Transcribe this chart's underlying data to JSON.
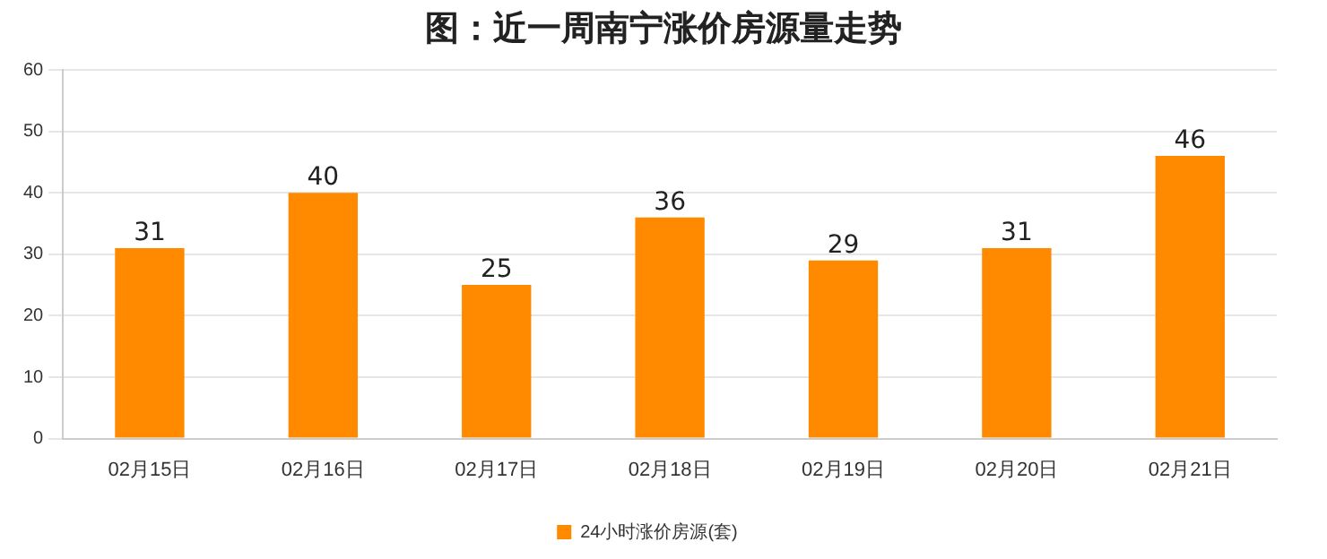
{
  "chart_data": {
    "type": "bar",
    "title": "图：近一周南宁涨价房源量走势",
    "categories": [
      "02月15日",
      "02月16日",
      "02月17日",
      "02月18日",
      "02月19日",
      "02月20日",
      "02月21日"
    ],
    "series": [
      {
        "name": "24小时涨价房源(套)",
        "color": "#ff8a00",
        "values": [
          31,
          40,
          25,
          36,
          29,
          31,
          46
        ]
      }
    ],
    "ylim": [
      0,
      60
    ],
    "yticks": [
      0,
      10,
      20,
      30,
      40,
      50,
      60
    ],
    "grid": "y",
    "legend": "bottom",
    "data_labels": true
  }
}
